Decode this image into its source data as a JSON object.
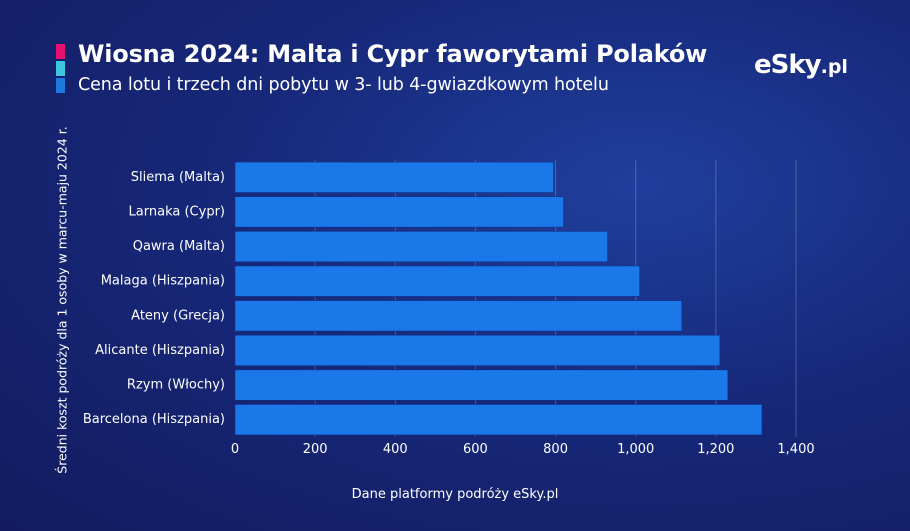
{
  "header": {
    "title": "Wiosna 2024: Malta i Cypr faworytami Polaków",
    "subtitle": "Cena lotu i trzech dni pobytu w 3- lub 4-gwiazdkowym hotelu",
    "accent_colors": [
      "#e8106e",
      "#3ec6e0",
      "#1f7ae0"
    ]
  },
  "logo": {
    "main": "eSky",
    "tld": ".pl"
  },
  "footer": {
    "source": "Dane platformy podróży eSky.pl"
  },
  "chart_data": {
    "type": "bar",
    "orientation": "horizontal",
    "title": "Wiosna 2024: Malta i Cypr faworytami Polaków",
    "subtitle": "Cena lotu i trzech dni pobytu w 3- lub 4-gwiazdkowym hotelu",
    "xlabel": "",
    "ylabel": "Średni koszt podróży dla 1 osoby w marcu-maju 2024 r.",
    "categories": [
      "Sliema (Malta)",
      "Larnaka (Cypr)",
      "Qawra (Malta)",
      "Malaga (Hiszpania)",
      "Ateny (Grecja)",
      "Alicante (Hiszpania)",
      "Rzym (Włochy)",
      "Barcelona (Hiszpania)"
    ],
    "values": [
      795,
      820,
      930,
      1010,
      1115,
      1210,
      1230,
      1315
    ],
    "xlim": [
      0,
      1400
    ],
    "xticks": [
      0,
      200,
      400,
      600,
      800,
      1000,
      1200,
      1400
    ],
    "xtick_labels": [
      "0",
      "200",
      "400",
      "600",
      "800",
      "1,000",
      "1,200",
      "1,400"
    ],
    "bar_color": "#1a78e8",
    "grid": true,
    "legend": "none"
  }
}
